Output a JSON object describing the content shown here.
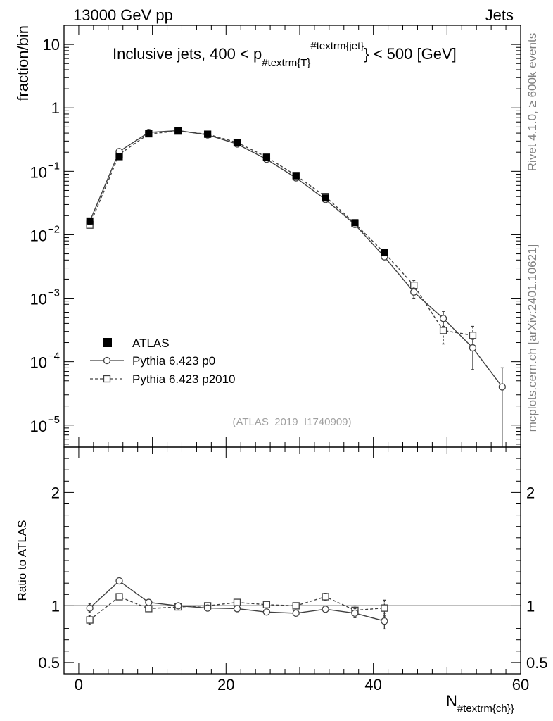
{
  "header": {
    "left": "13000 GeV pp",
    "right": "Jets"
  },
  "side_labels": {
    "upper": "Rivet 4.1.0, ≥ 600k events",
    "lower": "mcplots.cern.ch [arXiv:2401.10621]"
  },
  "chart_data": [
    {
      "type": "line",
      "panel": "main",
      "title": "Inclusive jets, 400 < p",
      "title_sub": "#textrm{T}",
      "title_sup": "#textrm{jet}",
      "title_tail": "} < 500 [GeV]",
      "ylabel": "fraction/bin",
      "yscale": "log",
      "ylim": [
        4.5e-06,
        20
      ],
      "xlim": [
        -2,
        60
      ],
      "ytick_labels": [
        {
          "value": 10,
          "base": "10",
          "exp": ""
        },
        {
          "value": 1,
          "base": "1",
          "exp": ""
        },
        {
          "value": 0.1,
          "base": "10",
          "exp": "−1"
        },
        {
          "value": 0.01,
          "base": "10",
          "exp": "−2"
        },
        {
          "value": 0.001,
          "base": "10",
          "exp": "−3"
        },
        {
          "value": 0.0001,
          "base": "10",
          "exp": "−4"
        },
        {
          "value": 1e-05,
          "base": "10",
          "exp": "−5"
        }
      ],
      "analysis_label": "(ATLAS_2019_I1740909)",
      "legend": [
        "ATLAS",
        "Pythia 6.423 p0",
        "Pythia 6.423 p2010"
      ],
      "series": [
        {
          "name": "ATLAS",
          "style": "filled-square",
          "x": [
            1.5,
            5.5,
            9.5,
            13.5,
            17.5,
            21.5,
            25.5,
            29.5,
            33.5,
            37.5,
            41.5
          ],
          "values": [
            0.0165,
            0.17,
            0.4,
            0.44,
            0.385,
            0.28,
            0.165,
            0.085,
            0.038,
            0.0155,
            0.0052
          ]
        },
        {
          "name": "Pythia 6.423 p0",
          "style": "open-circle-solid",
          "x": [
            1.5,
            5.5,
            9.5,
            13.5,
            17.5,
            21.5,
            25.5,
            29.5,
            33.5,
            37.5,
            41.5,
            45.5,
            49.5,
            53.5,
            57.5
          ],
          "values": [
            0.0162,
            0.205,
            0.41,
            0.44,
            0.375,
            0.27,
            0.155,
            0.079,
            0.036,
            0.0145,
            0.0045,
            0.00125,
            0.00048,
            0.000165,
            4e-05
          ],
          "err_low": [
            0,
            0,
            0,
            0,
            0,
            0,
            0,
            0,
            0,
            0,
            0,
            0.00025,
            0.00012,
            9e-05,
            3.55e-05
          ],
          "err_high": [
            0,
            0,
            0,
            0,
            0,
            0,
            0,
            0,
            0,
            0,
            0,
            0.00025,
            0.00014,
            6e-05,
            4e-05
          ]
        },
        {
          "name": "Pythia 6.423 p2010",
          "style": "open-square-dashed",
          "x": [
            1.5,
            5.5,
            9.5,
            13.5,
            17.5,
            21.5,
            25.5,
            29.5,
            33.5,
            37.5,
            41.5,
            45.5,
            49.5,
            53.5
          ],
          "values": [
            0.0142,
            0.185,
            0.39,
            0.43,
            0.385,
            0.285,
            0.168,
            0.086,
            0.04,
            0.015,
            0.0052,
            0.0016,
            0.00031,
            0.00026
          ],
          "err_low": [
            0,
            0,
            0,
            0,
            0,
            0,
            0,
            0,
            0,
            0,
            0,
            0.0003,
            0.00012,
            0.0001
          ],
          "err_high": [
            0,
            0,
            0,
            0,
            0,
            0,
            0,
            0,
            0,
            0,
            0,
            0.0003,
            0.00012,
            0.0001
          ]
        }
      ]
    },
    {
      "type": "line",
      "panel": "ratio",
      "ylabel": "Ratio to ATLAS",
      "xlabel": "N",
      "xlabel_sub": "#textrm{ch}}",
      "ylim": [
        0.4,
        2.4
      ],
      "xlim": [
        -2,
        60
      ],
      "yticks": [
        0.5,
        1,
        2
      ],
      "ytick_labels": [
        "0.5",
        "1",
        "2"
      ],
      "xticks": [
        0,
        20,
        40,
        60
      ],
      "xtick_labels": [
        "0",
        "20",
        "40",
        "60"
      ],
      "reference": 1,
      "series": [
        {
          "name": "Pythia 6.423 p0",
          "style": "open-circle-solid",
          "x": [
            1.5,
            5.5,
            9.5,
            13.5,
            17.5,
            21.5,
            25.5,
            29.5,
            33.5,
            37.5,
            41.5
          ],
          "values": [
            0.98,
            1.22,
            1.03,
            1.0,
            0.98,
            0.975,
            0.945,
            0.935,
            0.97,
            0.935,
            0.865
          ],
          "err_low": [
            0.04,
            0,
            0,
            0,
            0,
            0,
            0,
            0,
            0.02,
            0.04,
            0.07
          ],
          "err_high": [
            0.04,
            0,
            0,
            0,
            0,
            0,
            0,
            0,
            0.02,
            0.04,
            0.07
          ]
        },
        {
          "name": "Pythia 6.423 p2010",
          "style": "open-square-dashed",
          "x": [
            1.5,
            5.5,
            9.5,
            13.5,
            17.5,
            21.5,
            25.5,
            29.5,
            33.5,
            37.5,
            41.5
          ],
          "values": [
            0.875,
            1.08,
            0.975,
            0.99,
            1.0,
            1.03,
            1.01,
            1.0,
            1.08,
            0.96,
            0.98
          ],
          "err_low": [
            0.04,
            0,
            0,
            0,
            0,
            0,
            0,
            0,
            0.03,
            0.04,
            0.07
          ],
          "err_high": [
            0.04,
            0,
            0,
            0,
            0,
            0,
            0,
            0,
            0.03,
            0.04,
            0.07
          ]
        }
      ]
    }
  ]
}
